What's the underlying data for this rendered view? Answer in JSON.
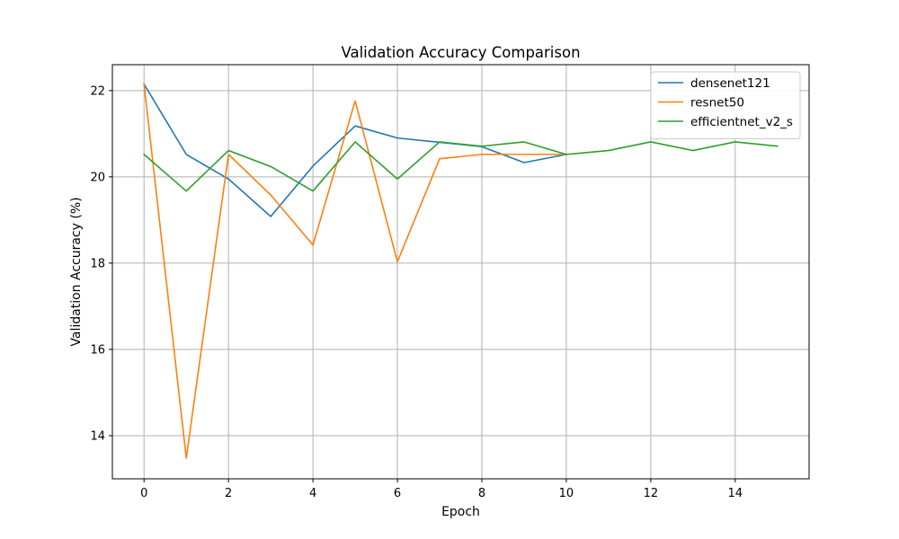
{
  "chart_data": {
    "type": "line",
    "title": "Validation Accuracy Comparison",
    "xlabel": "Epoch",
    "ylabel": "Validation Accuracy (%)",
    "xlim": [
      -0.75,
      15.75
    ],
    "ylim": [
      13.0,
      22.6
    ],
    "xticks": [
      0,
      2,
      4,
      6,
      8,
      10,
      12,
      14
    ],
    "yticks": [
      14,
      16,
      18,
      20,
      22
    ],
    "grid": true,
    "legend_position": "top-right",
    "series": [
      {
        "name": "densenet121",
        "color": "#1f77b4",
        "x": [
          0,
          1,
          2,
          3,
          4,
          5,
          6,
          7,
          8,
          9,
          10
        ],
        "values": [
          22.15,
          20.52,
          19.95,
          19.08,
          20.25,
          21.18,
          20.9,
          20.8,
          20.7,
          20.33,
          20.52
        ]
      },
      {
        "name": "resnet50",
        "color": "#ff7f0e",
        "x": [
          0,
          1,
          2,
          3,
          4,
          5,
          6,
          7,
          8,
          9,
          10
        ],
        "values": [
          22.15,
          13.48,
          20.52,
          19.58,
          18.42,
          21.76,
          18.03,
          20.42,
          20.52,
          20.52,
          20.52
        ]
      },
      {
        "name": "efficientnet_v2_s",
        "color": "#2ca02c",
        "x": [
          0,
          1,
          2,
          3,
          4,
          5,
          6,
          7,
          8,
          9,
          10,
          11,
          12,
          13,
          14,
          15
        ],
        "values": [
          20.52,
          19.67,
          20.61,
          20.24,
          19.67,
          20.81,
          19.95,
          20.81,
          20.71,
          20.81,
          20.52,
          20.61,
          20.81,
          20.61,
          20.81,
          20.71
        ]
      }
    ]
  }
}
